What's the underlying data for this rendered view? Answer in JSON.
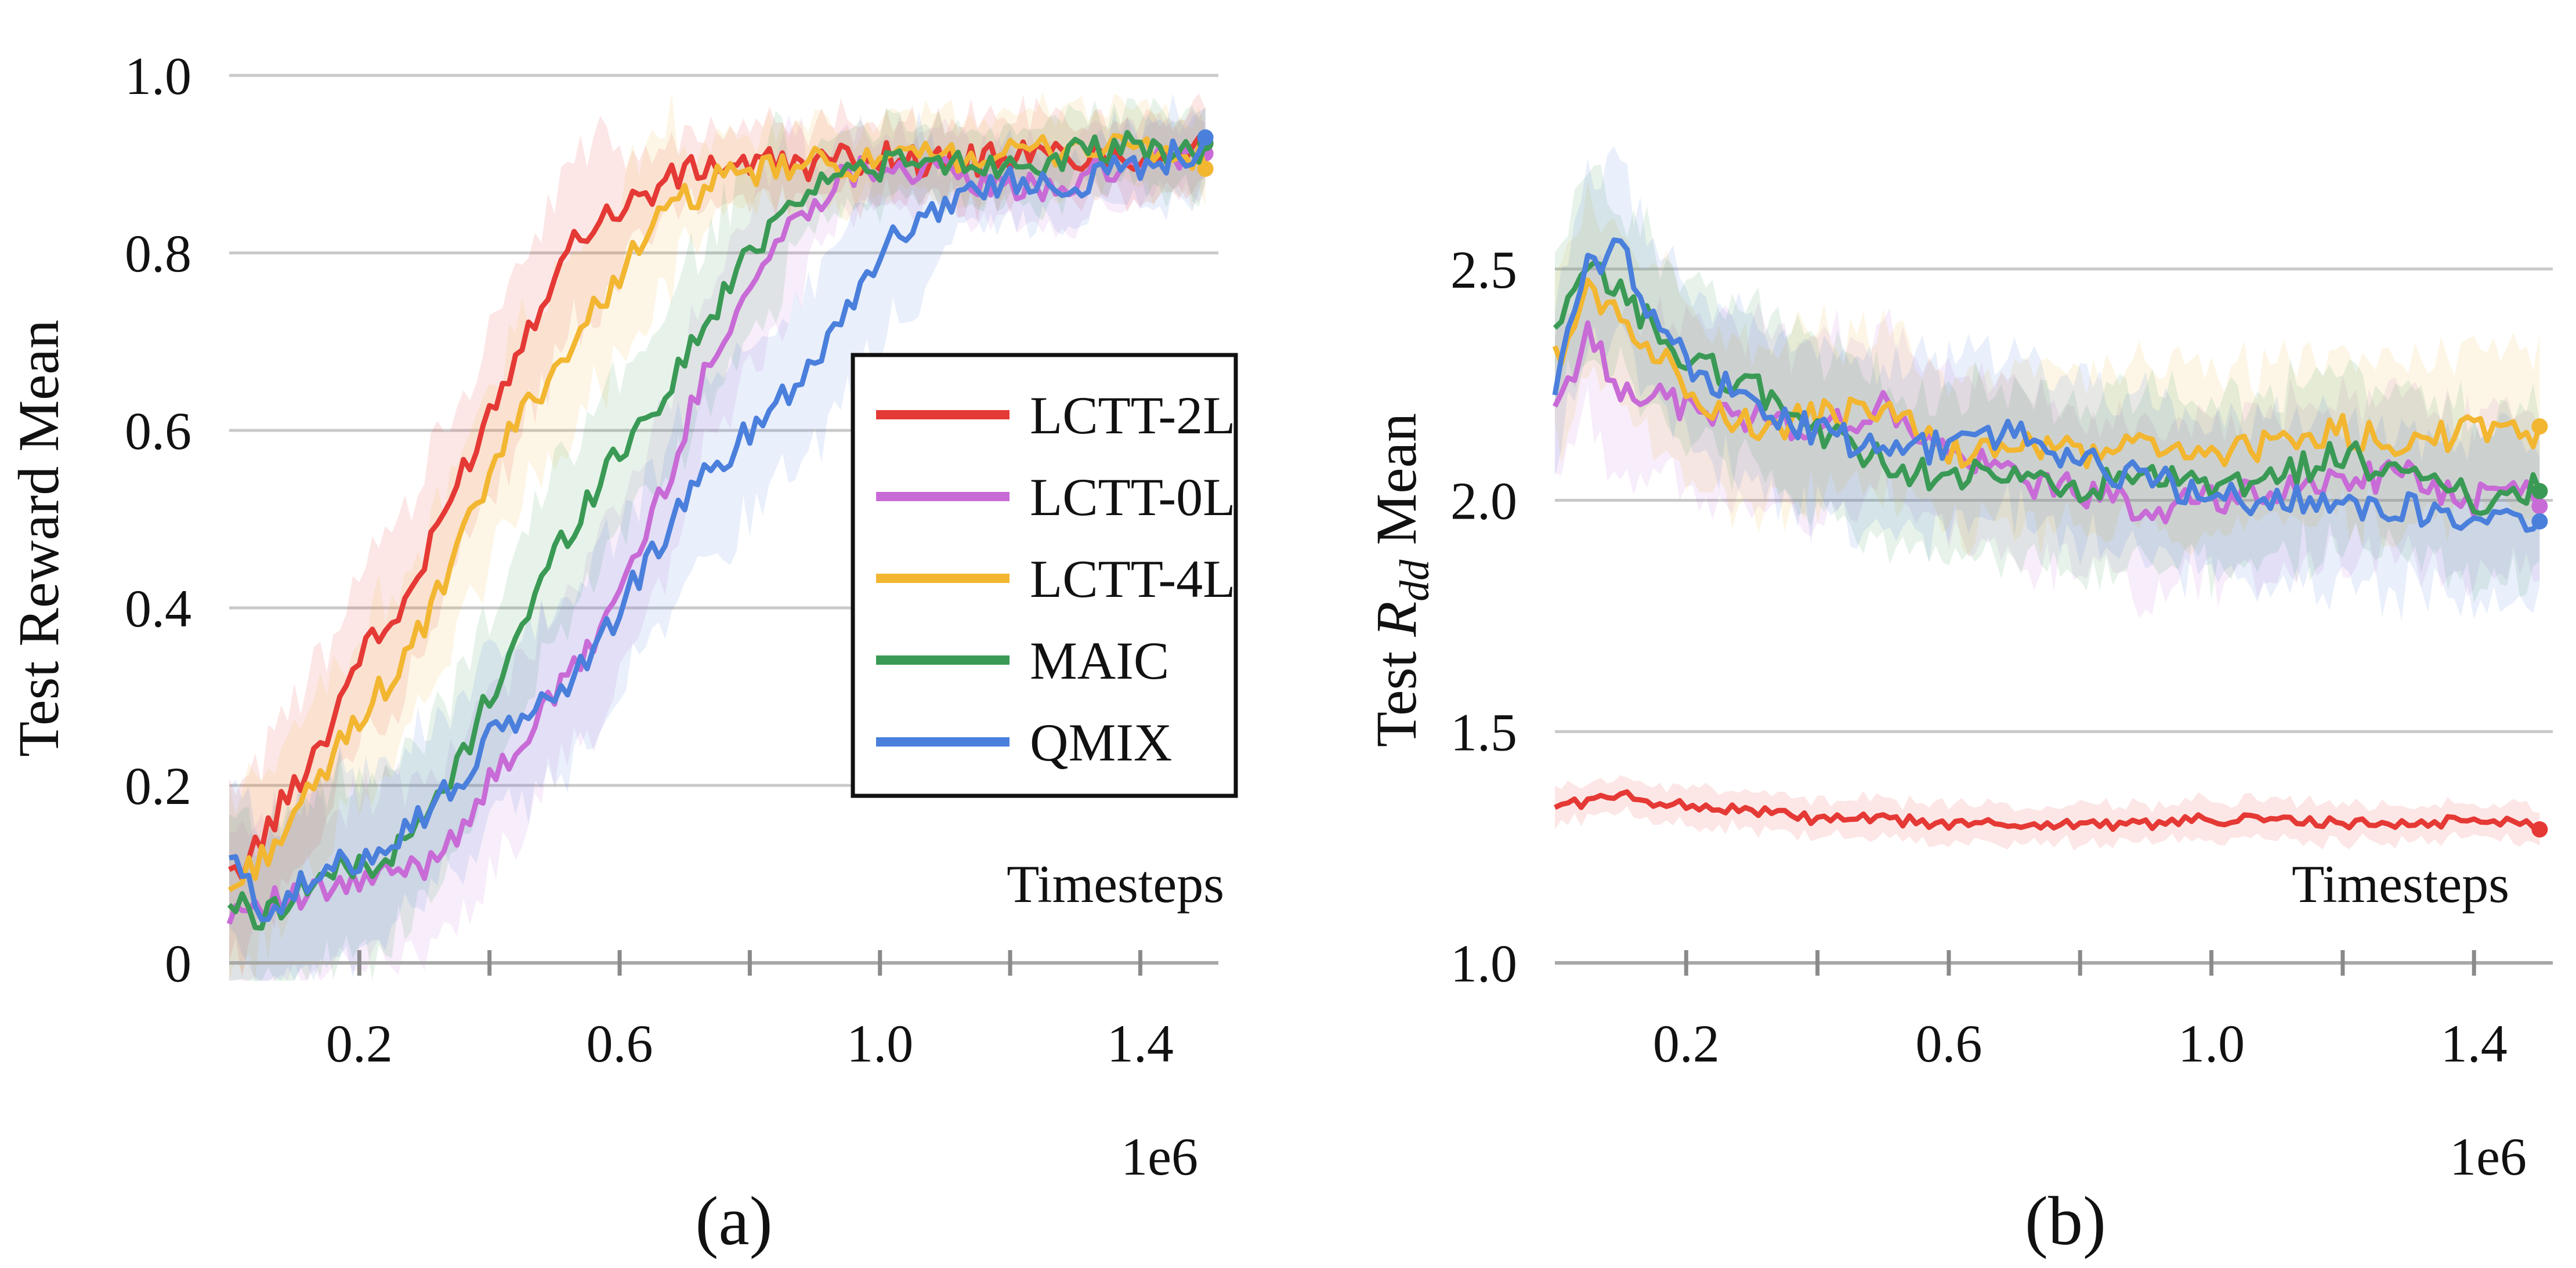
{
  "series_colors": {
    "LCTT-2L": "#e53935",
    "LCTT-0L": "#c86bd6",
    "LCTT-4L": "#f2b631",
    "MAIC": "#3a9a55",
    "QMIX": "#4a7fdc"
  },
  "chart_data": [
    {
      "type": "line",
      "panel_label": "(a)",
      "ylabel": "Test Reward Mean",
      "xlabel": "Timesteps",
      "x_multiplier": "1e6",
      "xlim": [
        0,
        1.52
      ],
      "ylim": [
        0,
        1.0
      ],
      "y_ticks": [
        0,
        0.2,
        0.4,
        0.6,
        0.8,
        1.0
      ],
      "y_tick_labels": [
        "0",
        "0.2",
        "0.4",
        "0.6",
        "0.8",
        "1.0"
      ],
      "x_ticks": [
        0.2,
        0.6,
        1.0,
        1.4
      ],
      "x_tick_labels": [
        "0.2",
        "0.6",
        "1.0",
        "1.4"
      ],
      "x_minor_ticks": [
        0.2,
        0.4,
        0.6,
        0.8,
        1.0,
        1.2,
        1.4
      ],
      "legend": {
        "position": "right-middle",
        "entries": [
          "LCTT-2L",
          "LCTT-0L",
          "LCTT-4L",
          "MAIC",
          "QMIX"
        ]
      },
      "series": [
        {
          "name": "LCTT-2L",
          "x": [
            0,
            0.05,
            0.1,
            0.15,
            0.2,
            0.25,
            0.3,
            0.35,
            0.4,
            0.45,
            0.5,
            0.55,
            0.6,
            0.65,
            0.7,
            0.75,
            0.8,
            0.9,
            1.0,
            1.1,
            1.2,
            1.3,
            1.4,
            1.5
          ],
          "values": [
            0.09,
            0.14,
            0.2,
            0.26,
            0.35,
            0.38,
            0.45,
            0.54,
            0.62,
            0.7,
            0.78,
            0.83,
            0.85,
            0.87,
            0.89,
            0.9,
            0.9,
            0.9,
            0.91,
            0.9,
            0.91,
            0.91,
            0.91,
            0.92
          ]
        },
        {
          "name": "LCTT-0L",
          "x": [
            0,
            0.05,
            0.1,
            0.15,
            0.2,
            0.25,
            0.3,
            0.35,
            0.4,
            0.45,
            0.5,
            0.55,
            0.6,
            0.65,
            0.7,
            0.75,
            0.8,
            0.85,
            0.9,
            0.95,
            1.0,
            1.1,
            1.2,
            1.3,
            1.4,
            1.5
          ],
          "values": [
            0.06,
            0.07,
            0.07,
            0.08,
            0.09,
            0.1,
            0.11,
            0.15,
            0.2,
            0.25,
            0.3,
            0.35,
            0.42,
            0.5,
            0.6,
            0.7,
            0.76,
            0.82,
            0.86,
            0.89,
            0.9,
            0.89,
            0.87,
            0.88,
            0.9,
            0.91
          ]
        },
        {
          "name": "LCTT-4L",
          "x": [
            0,
            0.05,
            0.1,
            0.15,
            0.2,
            0.25,
            0.3,
            0.35,
            0.4,
            0.45,
            0.5,
            0.55,
            0.6,
            0.65,
            0.7,
            0.75,
            0.8,
            0.9,
            1.0,
            1.1,
            1.2,
            1.3,
            1.4,
            1.5
          ],
          "values": [
            0.08,
            0.12,
            0.16,
            0.22,
            0.28,
            0.32,
            0.38,
            0.46,
            0.55,
            0.62,
            0.67,
            0.72,
            0.78,
            0.83,
            0.86,
            0.88,
            0.89,
            0.9,
            0.9,
            0.91,
            0.91,
            0.92,
            0.92,
            0.9
          ]
        },
        {
          "name": "MAIC",
          "x": [
            0,
            0.05,
            0.1,
            0.15,
            0.2,
            0.25,
            0.3,
            0.35,
            0.4,
            0.45,
            0.5,
            0.55,
            0.6,
            0.65,
            0.7,
            0.75,
            0.8,
            0.85,
            0.9,
            0.95,
            1.0,
            1.1,
            1.2,
            1.3,
            1.4,
            1.5
          ],
          "values": [
            0.07,
            0.05,
            0.08,
            0.1,
            0.11,
            0.12,
            0.16,
            0.22,
            0.3,
            0.38,
            0.46,
            0.52,
            0.58,
            0.62,
            0.68,
            0.74,
            0.8,
            0.85,
            0.88,
            0.89,
            0.9,
            0.9,
            0.9,
            0.91,
            0.92,
            0.91
          ]
        },
        {
          "name": "QMIX",
          "x": [
            0,
            0.05,
            0.1,
            0.15,
            0.2,
            0.25,
            0.3,
            0.35,
            0.4,
            0.45,
            0.5,
            0.55,
            0.6,
            0.65,
            0.7,
            0.75,
            0.8,
            0.85,
            0.9,
            0.95,
            1.0,
            1.1,
            1.2,
            1.3,
            1.4,
            1.5
          ],
          "values": [
            0.12,
            0.06,
            0.08,
            0.1,
            0.12,
            0.14,
            0.17,
            0.2,
            0.25,
            0.28,
            0.3,
            0.34,
            0.4,
            0.46,
            0.52,
            0.56,
            0.6,
            0.64,
            0.68,
            0.74,
            0.8,
            0.86,
            0.88,
            0.88,
            0.9,
            0.92
          ]
        }
      ]
    },
    {
      "type": "line",
      "panel_label": "(b)",
      "ylabel_prefix": "Test ",
      "ylabel_var": "R",
      "ylabel_sub": "dd",
      "ylabel_suffix": " Mean",
      "xlabel": "Timesteps",
      "x_multiplier": "1e6",
      "xlim": [
        0,
        1.52
      ],
      "ylim": [
        1.0,
        3.0
      ],
      "y_ticks": [
        1.0,
        1.5,
        2.0,
        2.5
      ],
      "y_tick_labels": [
        "1.0",
        "1.5",
        "2.0",
        "2.5"
      ],
      "x_ticks": [
        0.2,
        0.6,
        1.0,
        1.4
      ],
      "x_tick_labels": [
        "0.2",
        "0.6",
        "1.0",
        "1.4"
      ],
      "x_minor_ticks": [
        0.2,
        0.4,
        0.6,
        0.8,
        1.0,
        1.2,
        1.4
      ],
      "series": [
        {
          "name": "LCTT-2L",
          "x": [
            0,
            0.1,
            0.2,
            0.3,
            0.4,
            0.5,
            0.6,
            0.7,
            0.8,
            0.9,
            1.0,
            1.1,
            1.2,
            1.3,
            1.4,
            1.5
          ],
          "values": [
            1.34,
            1.36,
            1.34,
            1.33,
            1.31,
            1.31,
            1.3,
            1.3,
            1.3,
            1.3,
            1.31,
            1.31,
            1.3,
            1.3,
            1.31,
            1.3
          ]
        },
        {
          "name": "LCTT-0L",
          "x": [
            0,
            0.05,
            0.1,
            0.2,
            0.3,
            0.4,
            0.5,
            0.6,
            0.7,
            0.8,
            0.9,
            1.0,
            1.1,
            1.2,
            1.3,
            1.4,
            1.5
          ],
          "values": [
            2.2,
            2.35,
            2.25,
            2.2,
            2.18,
            2.15,
            2.2,
            2.1,
            2.05,
            2.02,
            1.98,
            2.0,
            2.02,
            2.05,
            2.05,
            2.0,
            2.02
          ]
        },
        {
          "name": "LCTT-4L",
          "x": [
            0,
            0.05,
            0.1,
            0.2,
            0.3,
            0.4,
            0.5,
            0.6,
            0.7,
            0.8,
            0.9,
            1.0,
            1.1,
            1.2,
            1.3,
            1.4,
            1.5
          ],
          "values": [
            2.3,
            2.45,
            2.4,
            2.25,
            2.15,
            2.18,
            2.2,
            2.1,
            2.12,
            2.1,
            2.12,
            2.1,
            2.12,
            2.15,
            2.12,
            2.15,
            2.13
          ]
        },
        {
          "name": "MAIC",
          "x": [
            0,
            0.05,
            0.1,
            0.2,
            0.3,
            0.4,
            0.5,
            0.6,
            0.7,
            0.8,
            0.9,
            1.0,
            1.1,
            1.2,
            1.3,
            1.4,
            1.5
          ],
          "values": [
            2.35,
            2.5,
            2.45,
            2.3,
            2.25,
            2.15,
            2.08,
            2.05,
            2.05,
            2.02,
            2.05,
            2.02,
            2.05,
            2.1,
            2.05,
            2.0,
            2.03
          ]
        },
        {
          "name": "QMIX",
          "x": [
            0,
            0.05,
            0.1,
            0.15,
            0.2,
            0.3,
            0.4,
            0.5,
            0.6,
            0.7,
            0.8,
            0.9,
            1.0,
            1.1,
            1.2,
            1.3,
            1.4,
            1.5
          ],
          "values": [
            2.25,
            2.5,
            2.55,
            2.4,
            2.3,
            2.2,
            2.15,
            2.1,
            2.12,
            2.15,
            2.08,
            2.05,
            2.0,
            2.0,
            2.0,
            1.98,
            1.97,
            1.96
          ]
        }
      ]
    }
  ]
}
